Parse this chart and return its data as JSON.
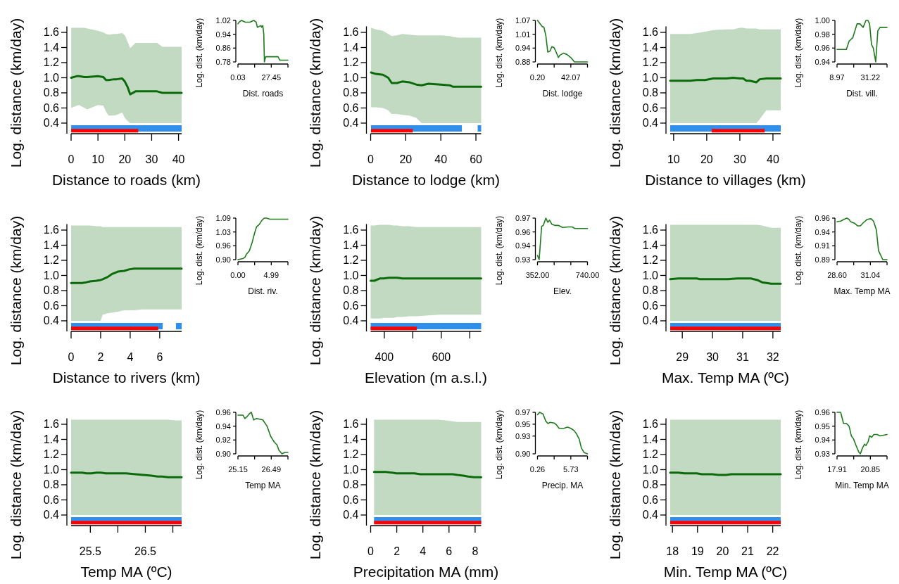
{
  "chart_data": [
    {
      "type": "line",
      "xlabel": "Distance to roads (km)",
      "ylabel": "Log. distance (km/day)",
      "xlim": [
        0,
        41.16
      ],
      "xticks": [
        0,
        10,
        20,
        30,
        40
      ],
      "ylim": [
        0.26,
        1.68
      ],
      "yticks": [
        0.4,
        0.6,
        0.8,
        {
          "value": 1,
          "label": "1.0"
        },
        1.2,
        1.4,
        1.6
      ],
      "series": [
        {
          "color": "#0b6b0b",
          "x": [
            0.03,
            2,
            3,
            5,
            6,
            10,
            12,
            13,
            14,
            16,
            17,
            19,
            20,
            21,
            22,
            24,
            32,
            34,
            41.16
          ],
          "values": [
            1,
            1.02,
            1.02,
            1.01,
            1.01,
            1.02,
            1.01,
            0.97,
            0.97,
            0.98,
            0.98,
            0.99,
            0.95,
            0.88,
            0.78,
            0.82,
            0.82,
            0.8,
            0.8
          ],
          "upper": [
            1.66,
            1.66,
            1.66,
            1.66,
            1.65,
            1.62,
            1.6,
            1.58,
            1.57,
            1.58,
            1.58,
            1.59,
            1.56,
            1.48,
            1.39,
            1.46,
            1.46,
            1.41,
            1.41
          ],
          "lower": [
            0.6,
            0.63,
            0.64,
            0.6,
            0.58,
            0.64,
            0.63,
            0.55,
            0.5,
            0.5,
            0.51,
            0.54,
            0.47,
            0.43,
            0.4,
            0.4,
            0.4,
            0.4,
            0.4
          ]
        },
        {
          "color": "#2f8fea",
          "x": [
            0.03,
            41.16
          ],
          "values": [
            0.33,
            0.33
          ]
        },
        {
          "color": "#ff0000",
          "x": [
            0.03,
            25
          ],
          "values": [
            0.3,
            0.3
          ]
        }
      ]
    },
    {
      "type": "line",
      "xlabel": "Dist. roads",
      "ylabel": "Log. dist. (km/day)",
      "xlim": [
        0.03,
        41.16
      ],
      "xticks": [
        0.03,
        {
          "value": 13.74,
          "label": null
        },
        27.45,
        {
          "value": 41.16,
          "label": null
        }
      ],
      "ylim": [
        0.78,
        1.02
      ],
      "yticks": [
        0.78,
        0.86,
        0.94,
        1.02
      ],
      "series": [
        {
          "color": "#1e7b1e",
          "x": [
            0.03,
            1,
            3,
            6,
            10,
            13,
            15,
            16,
            19,
            19.5,
            20.5,
            21.3,
            21.8,
            22.8,
            33,
            34.5,
            41.16
          ],
          "values": [
            1,
            1.01,
            1.02,
            1.01,
            1.01,
            1.02,
            1.01,
            0.98,
            0.99,
            0.98,
            0.99,
            0.94,
            0.78,
            0.81,
            0.81,
            0.79,
            0.79
          ]
        }
      ]
    },
    {
      "type": "line",
      "xlabel": "Distance to lodge (km)",
      "ylabel": "Log. distance (km/day)",
      "xlim": [
        0,
        63
      ],
      "xticks": [
        0,
        20,
        40,
        60
      ],
      "ylim": [
        0.26,
        1.68
      ],
      "yticks": [
        0.4,
        0.6,
        0.8,
        {
          "value": 1,
          "label": "1.0"
        },
        1.2,
        1.4,
        1.6
      ],
      "series": [
        {
          "color": "#0b6b0b",
          "x": [
            0.2,
            3,
            7,
            10,
            12,
            15,
            18,
            22,
            26,
            29,
            33,
            40,
            45,
            47,
            50,
            63
          ],
          "values": [
            1.07,
            1.05,
            1.04,
            1,
            0.93,
            0.93,
            0.95,
            0.94,
            0.91,
            0.9,
            0.92,
            0.91,
            0.9,
            0.88,
            0.88,
            0.88
          ],
          "upper": [
            1.66,
            1.64,
            1.62,
            1.58,
            1.55,
            1.56,
            1.58,
            1.57,
            1.56,
            1.56,
            1.56,
            1.56,
            1.55,
            1.54,
            1.53,
            1.53
          ],
          "lower": [
            0.61,
            0.61,
            0.6,
            0.57,
            0.52,
            0.52,
            0.51,
            0.5,
            0.47,
            0.4,
            0.4,
            0.4,
            0.4,
            0.4,
            0.4,
            0.4
          ]
        },
        {
          "color": "#2f8fea",
          "x": [
            0.2,
            52,
            53,
            61,
            63
          ],
          "values": [
            0.33,
            0.33,
            null,
            0.33,
            0.33
          ]
        },
        {
          "color": "#ff0000",
          "x": [
            0.2,
            24
          ],
          "values": [
            0.3,
            0.3
          ]
        }
      ]
    },
    {
      "type": "line",
      "xlabel": "Dist. lodge",
      "ylabel": "Log. dist. (km/day)",
      "xlim": [
        0.2,
        63
      ],
      "xticks": [
        {
          "value": 0.2,
          "label": "0.20"
        },
        {
          "value": 21.14,
          "label": null
        },
        42.07,
        {
          "value": 63,
          "label": null
        }
      ],
      "ylim": [
        0.88,
        1.07
      ],
      "yticks": [
        0.88,
        {
          "value": 0.9433,
          "label": "0.94"
        },
        {
          "value": 1.0067,
          "label": "1.01"
        },
        1.07
      ],
      "series": [
        {
          "color": "#1e7b1e",
          "x": [
            0.2,
            6.5,
            8.2,
            10.7,
            13.1,
            15.9,
            18.3,
            21.1,
            23.6,
            26.4,
            28.1,
            32.7,
            36.8,
            42.1,
            46.6,
            63
          ],
          "values": [
            1.07,
            1.04,
            1.04,
            1,
            0.925,
            0.93,
            0.95,
            0.945,
            0.925,
            0.9,
            0.91,
            0.92,
            0.915,
            0.9,
            0.88,
            0.88
          ]
        }
      ]
    },
    {
      "type": "line",
      "xlabel": "Distance to villages (km)",
      "ylabel": "Log. distance (km/day)",
      "xlim": [
        8.97,
        42.35
      ],
      "xticks": [
        10,
        20,
        30,
        40
      ],
      "ylim": [
        0.26,
        1.68
      ],
      "yticks": [
        0.4,
        0.6,
        0.8,
        {
          "value": 1,
          "label": "1.0"
        },
        1.2,
        1.4,
        1.6
      ],
      "series": [
        {
          "color": "#0b6b0b",
          "x": [
            8.97,
            15,
            17,
            19.5,
            22,
            26,
            28,
            30,
            31,
            32,
            33,
            35,
            36,
            38,
            42.35
          ],
          "values": [
            0.96,
            0.96,
            0.97,
            0.97,
            0.99,
            0.99,
            1,
            0.99,
            0.99,
            0.96,
            0.96,
            0.94,
            0.98,
            0.99,
            0.99
          ],
          "upper": [
            1.58,
            1.58,
            1.59,
            1.61,
            1.63,
            1.64,
            1.64,
            1.66,
            1.66,
            1.65,
            1.65,
            1.65,
            1.64,
            1.64,
            1.64
          ],
          "lower": [
            0.4,
            0.4,
            0.4,
            0.4,
            0.4,
            0.4,
            0.4,
            0.4,
            0.4,
            0.4,
            0.4,
            0.4,
            0.45,
            0.57,
            0.57
          ]
        },
        {
          "color": "#2f8fea",
          "x": [
            8.97,
            42.35
          ],
          "values": [
            0.33,
            0.33
          ]
        },
        {
          "color": "#ff0000",
          "x": [
            21.5,
            37.5
          ],
          "values": [
            0.3,
            0.3
          ]
        }
      ]
    },
    {
      "type": "line",
      "xlabel": "Dist. vill.",
      "ylabel": "Log. dist. (km/day)",
      "xlim": [
        8.97,
        42.35
      ],
      "xticks": [
        8.97,
        {
          "value": 20.1,
          "label": null
        },
        31.22,
        {
          "value": 42.35,
          "label": null
        }
      ],
      "ylim": [
        0.94,
        1
      ],
      "yticks": [
        0.94,
        0.96,
        0.98,
        {
          "value": 1,
          "label": "1.00"
        }
      ],
      "series": [
        {
          "color": "#1e7b1e",
          "x": [
            8.97,
            15.2,
            17,
            19.5,
            22.3,
            24.2,
            26.4,
            28.3,
            29.6,
            30.7,
            32,
            33.2,
            34.8,
            36.2,
            37.7,
            42.35
          ],
          "values": [
            0.958,
            0.958,
            0.97,
            0.975,
            0.995,
            0.995,
            0.99,
            1,
            1,
            0.995,
            0.965,
            0.96,
            0.94,
            0.985,
            0.99,
            0.99
          ]
        }
      ]
    },
    {
      "type": "line",
      "xlabel": "Distance to rivers (km)",
      "ylabel": "Log. distance (km/day)",
      "xlim": [
        0,
        7.485
      ],
      "xticks": [
        0,
        2,
        4,
        6
      ],
      "ylim": [
        0.26,
        1.68
      ],
      "yticks": [
        0.4,
        0.6,
        0.8,
        {
          "value": 1,
          "label": "1.0"
        },
        1.2,
        1.4,
        1.6
      ],
      "series": [
        {
          "color": "#0b6b0b",
          "x": [
            0,
            0.73,
            1.03,
            1.28,
            1.71,
            2,
            2.14,
            2.48,
            2.78,
            3.16,
            3.59,
            3.93,
            4.27,
            4.79,
            7.485
          ],
          "values": [
            0.9,
            0.9,
            0.91,
            0.92,
            0.93,
            0.94,
            0.95,
            0.98,
            1.02,
            1.05,
            1.06,
            1.08,
            1.09,
            1.09,
            1.09
          ],
          "upper": [
            1.66,
            1.66,
            1.66,
            1.66,
            1.65,
            1.65,
            1.64,
            1.64,
            1.64,
            1.64,
            1.64,
            1.64,
            1.64,
            1.64,
            1.64
          ],
          "lower": [
            0.4,
            0.4,
            0.4,
            0.4,
            0.4,
            0.4,
            0.48,
            0.5,
            0.51,
            0.52,
            0.54,
            0.54,
            0.54,
            0.55,
            0.55
          ]
        },
        {
          "color": "#2f8fea",
          "x": [
            0,
            6.2,
            6.5,
            7.1,
            7.485
          ],
          "values": [
            0.33,
            0.33,
            null,
            0.33,
            0.33
          ]
        },
        {
          "color": "#ff0000",
          "x": [
            0,
            5.9
          ],
          "values": [
            0.3,
            0.3
          ]
        }
      ]
    },
    {
      "type": "line",
      "xlabel": "Dist. riv.",
      "ylabel": "Log. dist. (km/day)",
      "xlim": [
        0,
        7.485
      ],
      "xticks": [
        {
          "value": 0,
          "label": "0.00"
        },
        {
          "value": 2.495,
          "label": null
        },
        4.99,
        {
          "value": 7.485,
          "label": null
        }
      ],
      "ylim": [
        0.9,
        1.09
      ],
      "yticks": [
        {
          "value": 0.9,
          "label": "0.90"
        },
        {
          "value": 0.9633,
          "label": "0.96"
        },
        {
          "value": 1.0267,
          "label": "1.03"
        },
        1.09
      ],
      "series": [
        {
          "color": "#1e7b1e",
          "x": [
            0,
            0.73,
            1.03,
            1.28,
            1.71,
            2.14,
            2.48,
            2.78,
            3.16,
            3.59,
            3.93,
            4.27,
            4.79,
            7.485
          ],
          "values": [
            0.9,
            0.905,
            0.91,
            0.925,
            0.94,
            0.98,
            1.02,
            1.05,
            1.06,
            1.08,
            1.09,
            1.09,
            1.085,
            1.085
          ]
        }
      ]
    },
    {
      "type": "line",
      "xlabel": "Elevation (m a.s.l.)",
      "ylabel": "Log. distance (km/day)",
      "xlim": [
        352,
        740
      ],
      "xticks": [
        400,
        {
          "value": 500,
          "label": null
        },
        600,
        {
          "value": 700,
          "label": null
        }
      ],
      "ylim": [
        0.26,
        1.68
      ],
      "yticks": [
        0.4,
        0.6,
        0.8,
        {
          "value": 1,
          "label": "1.0"
        },
        1.2,
        1.4,
        1.6
      ],
      "series": [
        {
          "color": "#0b6b0b",
          "x": [
            352,
            365,
            384,
            397,
            417,
            432,
            445,
            464,
            486,
            514,
            546,
            593,
            621,
            643,
            740
          ],
          "values": [
            0.93,
            0.93,
            0.96,
            0.96,
            0.97,
            0.97,
            0.97,
            0.96,
            0.96,
            0.96,
            0.96,
            0.96,
            0.96,
            0.96,
            0.96
          ],
          "upper": [
            1.66,
            1.66,
            1.67,
            1.67,
            1.67,
            1.66,
            1.66,
            1.65,
            1.65,
            1.64,
            1.64,
            1.64,
            1.64,
            1.64,
            1.64
          ],
          "lower": [
            0.43,
            0.43,
            0.43,
            0.44,
            0.44,
            0.44,
            0.45,
            0.45,
            0.46,
            0.46,
            0.47,
            0.48,
            0.48,
            0.48,
            0.48
          ]
        },
        {
          "color": "#2f8fea",
          "x": [
            352,
            740
          ],
          "values": [
            0.33,
            0.33
          ]
        },
        {
          "color": "#ff0000",
          "x": [
            352,
            514
          ],
          "values": [
            0.3,
            0.3
          ]
        }
      ]
    },
    {
      "type": "line",
      "xlabel": "Elev.",
      "ylabel": "Log. dist. (km/day)",
      "xlim": [
        352,
        740
      ],
      "xticks": [
        {
          "value": 352,
          "label": "352.00"
        },
        {
          "value": 481.33,
          "label": null
        },
        {
          "value": 610.67,
          "label": null
        },
        {
          "value": 740,
          "label": "740.00"
        }
      ],
      "ylim": [
        0.93,
        0.97
      ],
      "yticks": [
        0.93,
        {
          "value": 0.9433,
          "label": "0.94"
        },
        {
          "value": 0.9567,
          "label": "0.96"
        },
        0.97
      ],
      "series": [
        {
          "color": "#1e7b1e",
          "x": [
            352,
            365,
            384,
            397,
            417,
            432,
            445,
            464,
            486,
            514,
            546,
            593,
            621,
            643,
            740
          ],
          "values": [
            0.934,
            0.93,
            0.962,
            0.963,
            0.97,
            0.966,
            0.968,
            0.964,
            0.963,
            0.963,
            0.961,
            0.9615,
            0.9615,
            0.96,
            0.96
          ]
        }
      ]
    },
    {
      "type": "line",
      "xlabel": "Max. Temp MA (ºC)",
      "ylabel": "Log. distance (km/day)",
      "xlim": [
        28.6,
        32.26
      ],
      "xticks": [
        29,
        30,
        31,
        32
      ],
      "ylim": [
        0.26,
        1.68
      ],
      "yticks": [
        0.4,
        0.6,
        0.8,
        {
          "value": 1,
          "label": "1.0"
        },
        1.2,
        1.4,
        1.6
      ],
      "series": [
        {
          "color": "#0b6b0b",
          "x": [
            28.6,
            28.87,
            29.11,
            29.32,
            29.48,
            29.59,
            29.9,
            30.1,
            30.31,
            30.51,
            30.82,
            31.09,
            31.27,
            31.48,
            31.64,
            31.95,
            32.26
          ],
          "values": [
            0.95,
            0.96,
            0.96,
            0.96,
            0.96,
            0.95,
            0.95,
            0.95,
            0.95,
            0.95,
            0.96,
            0.96,
            0.96,
            0.94,
            0.91,
            0.89,
            0.89
          ],
          "upper": [
            1.67,
            1.67,
            1.67,
            1.67,
            1.67,
            1.67,
            1.67,
            1.67,
            1.67,
            1.67,
            1.67,
            1.67,
            1.67,
            1.67,
            1.66,
            1.63,
            1.63
          ],
          "lower": [
            0.4,
            0.4,
            0.4,
            0.4,
            0.4,
            0.4,
            0.4,
            0.4,
            0.4,
            0.4,
            0.4,
            0.4,
            0.4,
            0.4,
            0.4,
            0.4,
            0.4
          ]
        },
        {
          "color": "#2f8fea",
          "x": [
            28.6,
            32.26
          ],
          "values": [
            0.33,
            0.33
          ]
        },
        {
          "color": "#ff0000",
          "x": [
            28.6,
            32.26
          ],
          "values": [
            0.3,
            0.3
          ]
        }
      ]
    },
    {
      "type": "line",
      "xlabel": "Max. Temp MA",
      "ylabel": "Log. dist. (km/day)",
      "xlim": [
        28.6,
        32.26
      ],
      "xticks": [
        {
          "value": 28.6,
          "label": "28.60"
        },
        {
          "value": 29.82,
          "label": null
        },
        31.04,
        {
          "value": 32.26,
          "label": null
        }
      ],
      "ylim": [
        0.89,
        0.96
      ],
      "yticks": [
        0.89,
        {
          "value": 0.9133,
          "label": "0.91"
        },
        {
          "value": 0.9367,
          "label": "0.94"
        },
        0.96
      ],
      "series": [
        {
          "color": "#1e7b1e",
          "x": [
            28.6,
            28.87,
            29.11,
            29.32,
            29.48,
            29.59,
            29.9,
            30.1,
            30.31,
            30.51,
            30.82,
            31.09,
            31.27,
            31.48,
            31.64,
            31.95,
            32.26
          ],
          "values": [
            0.954,
            0.955,
            0.958,
            0.96,
            0.958,
            0.954,
            0.951,
            0.947,
            0.947,
            0.952,
            0.958,
            0.959,
            0.955,
            0.94,
            0.905,
            0.89,
            0.89
          ]
        }
      ]
    },
    {
      "type": "line",
      "xlabel": "Temp MA (ºC)",
      "ylabel": "Log. distance (km/day)",
      "xlim": [
        25.15,
        27.16
      ],
      "xticks": [
        25.5,
        {
          "value": 26,
          "label": null
        },
        26.5,
        {
          "value": 27,
          "label": null
        }
      ],
      "ylim": [
        0.26,
        1.68
      ],
      "yticks": [
        0.4,
        0.6,
        0.8,
        {
          "value": 1,
          "label": "1.0"
        },
        1.2,
        1.4,
        1.6
      ],
      "series": [
        {
          "color": "#0b6b0b",
          "x": [
            25.15,
            25.35,
            25.43,
            25.52,
            25.61,
            25.69,
            25.78,
            25.89,
            26.03,
            26.15,
            26.32,
            26.47,
            26.61,
            26.72,
            26.8,
            26.92,
            27.03,
            27.16
          ],
          "values": [
            0.96,
            0.96,
            0.95,
            0.95,
            0.96,
            0.96,
            0.95,
            0.95,
            0.95,
            0.95,
            0.94,
            0.93,
            0.92,
            0.91,
            0.91,
            0.9,
            0.9,
            0.9
          ],
          "upper": [
            1.66,
            1.66,
            1.66,
            1.66,
            1.66,
            1.66,
            1.66,
            1.66,
            1.66,
            1.66,
            1.66,
            1.66,
            1.66,
            1.66,
            1.66,
            1.66,
            1.65,
            1.65
          ],
          "lower": [
            0.4,
            0.4,
            0.4,
            0.4,
            0.4,
            0.4,
            0.4,
            0.4,
            0.4,
            0.4,
            0.4,
            0.4,
            0.4,
            0.4,
            0.4,
            0.4,
            0.4,
            0.4
          ]
        },
        {
          "color": "#2f8fea",
          "x": [
            25.15,
            27.16
          ],
          "values": [
            0.33,
            0.33
          ]
        },
        {
          "color": "#ff0000",
          "x": [
            25.15,
            27.16
          ],
          "values": [
            0.3,
            0.3
          ]
        }
      ]
    },
    {
      "type": "line",
      "xlabel": "Temp MA",
      "ylabel": "Log. dist. (km/day)",
      "xlim": [
        25.15,
        27.16
      ],
      "xticks": [
        25.15,
        {
          "value": 25.82,
          "label": null
        },
        26.49,
        {
          "value": 27.16,
          "label": null
        }
      ],
      "ylim": [
        0.9,
        0.96
      ],
      "yticks": [
        {
          "value": 0.9,
          "label": "0.90"
        },
        0.92,
        0.94,
        0.96
      ],
      "series": [
        {
          "color": "#1e7b1e",
          "x": [
            25.15,
            25.35,
            25.43,
            25.52,
            25.61,
            25.69,
            25.78,
            25.89,
            26.03,
            26.15,
            26.32,
            26.47,
            26.61,
            26.72,
            26.8,
            26.92,
            27.03,
            27.16
          ],
          "values": [
            0.956,
            0.956,
            0.951,
            0.954,
            0.958,
            0.96,
            0.949,
            0.951,
            0.95,
            0.949,
            0.94,
            0.925,
            0.917,
            0.913,
            0.905,
            0.9,
            0.902,
            0.902
          ]
        }
      ]
    },
    {
      "type": "line",
      "xlabel": "Precipitation MA (mm)",
      "ylabel": "Log. distance (km/day)",
      "xlim": [
        0,
        8.465
      ],
      "xticks": [
        0,
        2,
        4,
        6,
        8
      ],
      "ylim": [
        0.26,
        1.68
      ],
      "yticks": [
        0.4,
        0.6,
        0.8,
        {
          "value": 1,
          "label": "1.0"
        },
        1.2,
        1.4,
        1.6
      ],
      "series": [
        {
          "color": "#0b6b0b",
          "x": [
            0.26,
            0.62,
            1.17,
            1.63,
            1.99,
            2.31,
            2.99,
            3.36,
            3.81,
            4.59,
            5.18,
            5.73,
            6.28,
            6.64,
            7.1,
            7.46,
            7.92,
            8.465
          ],
          "values": [
            0.97,
            0.97,
            0.97,
            0.96,
            0.95,
            0.95,
            0.95,
            0.95,
            0.94,
            0.94,
            0.94,
            0.94,
            0.94,
            0.93,
            0.92,
            0.91,
            0.9,
            0.9
          ],
          "upper": [
            1.66,
            1.66,
            1.66,
            1.66,
            1.66,
            1.66,
            1.66,
            1.66,
            1.66,
            1.66,
            1.66,
            1.65,
            1.64,
            1.63,
            1.63,
            1.63,
            1.63,
            1.63
          ],
          "lower": [
            0.4,
            0.4,
            0.4,
            0.4,
            0.4,
            0.4,
            0.4,
            0.4,
            0.4,
            0.4,
            0.4,
            0.4,
            0.4,
            0.4,
            0.4,
            0.4,
            0.4,
            0.4
          ]
        },
        {
          "color": "#2f8fea",
          "x": [
            0.26,
            8.465
          ],
          "values": [
            0.33,
            0.33
          ]
        },
        {
          "color": "#ff0000",
          "x": [
            0.26,
            8.465
          ],
          "values": [
            0.3,
            0.3
          ]
        }
      ]
    },
    {
      "type": "line",
      "xlabel": "Precip. MA",
      "ylabel": "Log. dist. (km/day)",
      "xlim": [
        0.26,
        8.465
      ],
      "xticks": [
        0.26,
        {
          "value": 2.995,
          "label": null
        },
        5.73,
        {
          "value": 8.465,
          "label": null
        }
      ],
      "ylim": [
        0.9,
        0.97
      ],
      "yticks": [
        {
          "value": 0.9,
          "label": "0.90"
        },
        0.93,
        0.95,
        0.97
      ],
      "series": [
        {
          "color": "#1e7b1e",
          "x": [
            0.26,
            0.62,
            1.17,
            1.63,
            1.99,
            2.31,
            2.99,
            3.36,
            3.81,
            4.59,
            5.18,
            5.73,
            6.28,
            6.64,
            7.1,
            7.46,
            7.92,
            8.465
          ],
          "values": [
            0.966,
            0.97,
            0.967,
            0.955,
            0.951,
            0.953,
            0.952,
            0.949,
            0.943,
            0.943,
            0.945,
            0.943,
            0.939,
            0.934,
            0.925,
            0.91,
            0.902,
            0.9
          ]
        }
      ]
    },
    {
      "type": "line",
      "xlabel": "Min. Temp MA (ºC)",
      "ylabel": "Log. distance (km/day)",
      "xlim": [
        17.91,
        22.32
      ],
      "xticks": [
        18,
        19,
        20,
        21,
        22
      ],
      "ylim": [
        0.26,
        1.68
      ],
      "yticks": [
        0.4,
        0.6,
        0.8,
        {
          "value": 1,
          "label": "1.0"
        },
        1.2,
        1.4,
        1.6
      ],
      "series": [
        {
          "color": "#0b6b0b",
          "x": [
            17.91,
            18.23,
            18.48,
            18.73,
            18.97,
            19.17,
            19.35,
            19.59,
            19.84,
            19.97,
            20.14,
            20.34,
            20.46,
            20.66,
            20.78,
            20.96,
            21.16,
            21.45,
            21.7,
            22.32
          ],
          "values": [
            0.96,
            0.96,
            0.95,
            0.95,
            0.95,
            0.94,
            0.94,
            0.94,
            0.93,
            0.93,
            0.93,
            0.94,
            0.94,
            0.94,
            0.94,
            0.94,
            0.94,
            0.94,
            0.94,
            0.94
          ],
          "upper": [
            1.66,
            1.66,
            1.66,
            1.66,
            1.66,
            1.66,
            1.66,
            1.66,
            1.66,
            1.66,
            1.66,
            1.66,
            1.66,
            1.66,
            1.66,
            1.66,
            1.66,
            1.66,
            1.66,
            1.66
          ],
          "lower": [
            0.4,
            0.4,
            0.4,
            0.4,
            0.4,
            0.4,
            0.4,
            0.4,
            0.4,
            0.4,
            0.4,
            0.4,
            0.4,
            0.4,
            0.4,
            0.4,
            0.4,
            0.4,
            0.4,
            0.4
          ]
        },
        {
          "color": "#2f8fea",
          "x": [
            17.91,
            22.32
          ],
          "values": [
            0.33,
            0.33
          ]
        },
        {
          "color": "#ff0000",
          "x": [
            17.91,
            22.32
          ],
          "values": [
            0.3,
            0.3
          ]
        }
      ]
    },
    {
      "type": "line",
      "xlabel": "Min. Temp MA",
      "ylabel": "Log. dist. (km/day)",
      "xlim": [
        17.91,
        22.32
      ],
      "xticks": [
        17.91,
        {
          "value": 19.38,
          "label": null
        },
        20.85,
        {
          "value": 22.32,
          "label": null
        }
      ],
      "ylim": [
        0.93,
        0.96
      ],
      "yticks": [
        0.93,
        0.94,
        0.95,
        0.96
      ],
      "series": [
        {
          "color": "#1e7b1e",
          "x": [
            17.91,
            18.23,
            18.48,
            18.73,
            18.97,
            19.17,
            19.35,
            19.59,
            19.84,
            19.97,
            20.14,
            20.34,
            20.46,
            20.66,
            20.78,
            20.96,
            21.16,
            21.45,
            21.7,
            22.32
          ],
          "values": [
            0.96,
            0.96,
            0.952,
            0.952,
            0.95,
            0.943,
            0.941,
            0.936,
            0.931,
            0.93,
            0.934,
            0.937,
            0.936,
            0.939,
            0.943,
            0.942,
            0.944,
            0.944,
            0.943,
            0.944
          ]
        }
      ]
    }
  ]
}
